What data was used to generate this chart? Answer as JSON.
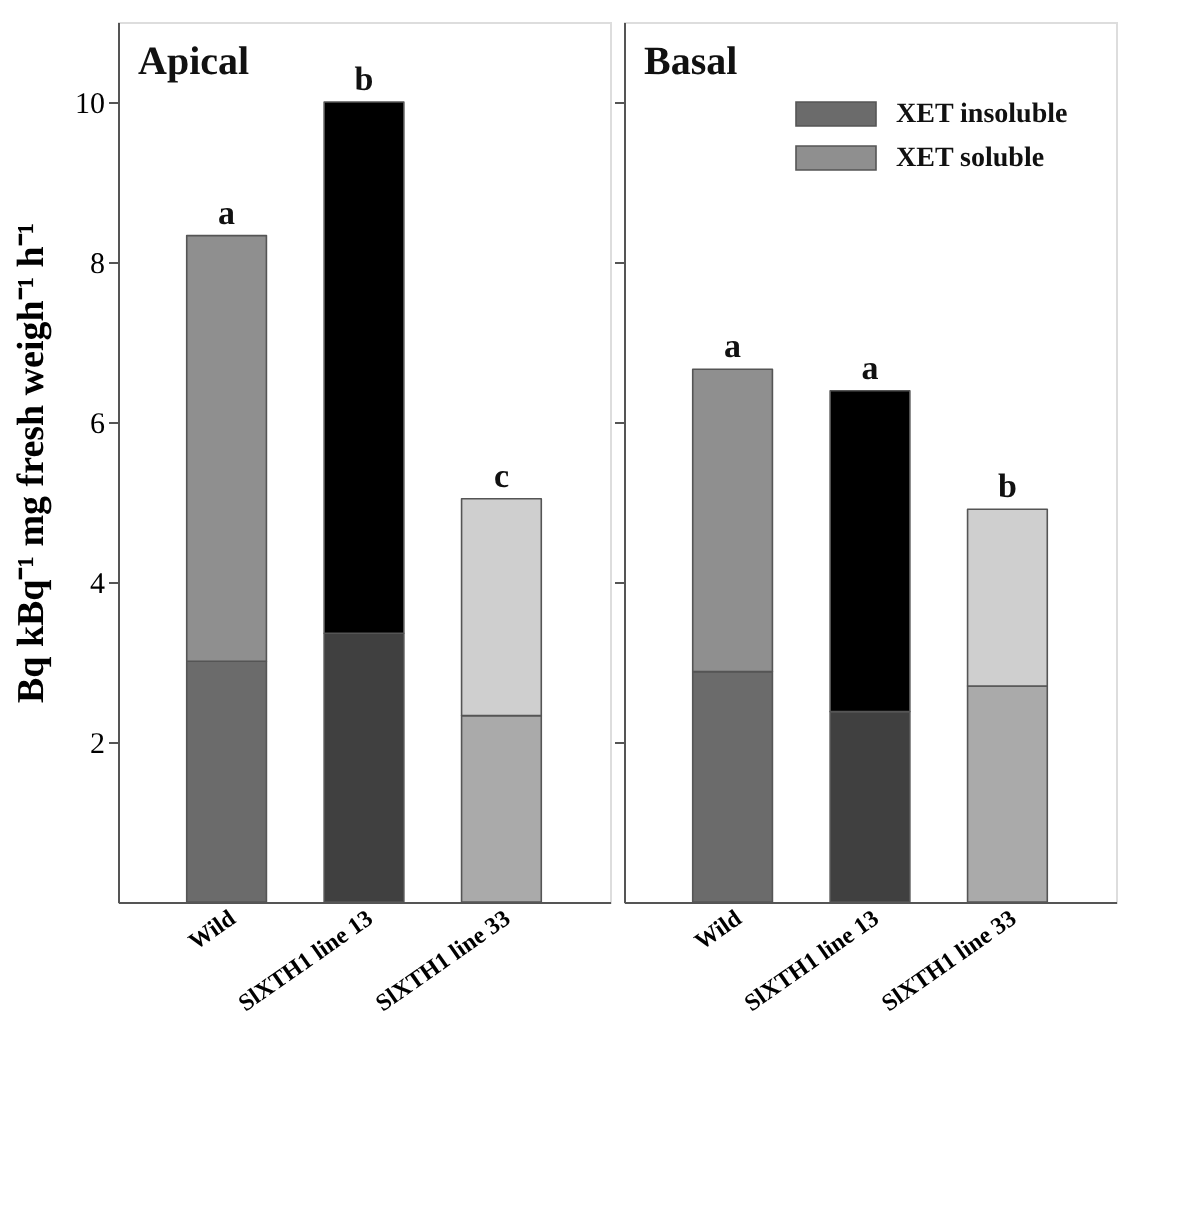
{
  "chart_data": [
    {
      "type": "bar",
      "title": "Apical",
      "ylabel": "Bq kBq⁻¹ mg fresh weigh⁻¹ h⁻¹",
      "categories": [
        "Wild",
        "SlXTH1 line 13",
        "SlXTH1 line 33"
      ],
      "stacked": true,
      "ylim": [
        0,
        11
      ],
      "yticks": [
        2,
        4,
        6,
        8,
        10
      ],
      "grid": false,
      "series": [
        {
          "colors": [
            "#6b6b6b",
            "#404040",
            "#aaaaaa"
          ],
          "values": [
            3.01,
            3.36,
            2.33
          ]
        },
        {
          "colors": [
            "#8f8f8f",
            "#000000",
            "#cfcfcf"
          ],
          "values": [
            5.32,
            6.64,
            2.71
          ]
        }
      ],
      "annotations": [
        {
          "text": "a",
          "x": "Wild",
          "y": 8.33
        },
        {
          "text": "b",
          "x": "SlXTH1 line 13",
          "y": 10.0
        },
        {
          "text": "c",
          "x": "SlXTH1 line 33",
          "y": 5.04
        }
      ]
    },
    {
      "type": "bar",
      "title": "Basal",
      "categories": [
        "Wild",
        "SlXTH1 line 13",
        "SlXTH1 line 33"
      ],
      "stacked": true,
      "ylim": [
        0,
        11
      ],
      "yticks": [
        2,
        4,
        6,
        8,
        10
      ],
      "tick_labels": "x",
      "grid": false,
      "legend": "top right",
      "series": [
        {
          "name": "XET insoluble",
          "color": "#6b6b6b",
          "colors": [
            "#6b6b6b",
            "#404040",
            "#aaaaaa"
          ],
          "values": [
            2.88,
            2.38,
            2.7
          ]
        },
        {
          "name": "XET soluble",
          "color": "#8f8f8f",
          "colors": [
            "#8f8f8f",
            "#000000",
            "#cfcfcf"
          ],
          "values": [
            3.78,
            4.01,
            2.21
          ]
        }
      ],
      "annotations": [
        {
          "text": "a",
          "x": "Wild",
          "y": 6.66
        },
        {
          "text": "a",
          "x": "SlXTH1 line 13",
          "y": 6.39
        },
        {
          "text": "b",
          "x": "SlXTH1 line 33",
          "y": 4.91
        }
      ]
    }
  ]
}
